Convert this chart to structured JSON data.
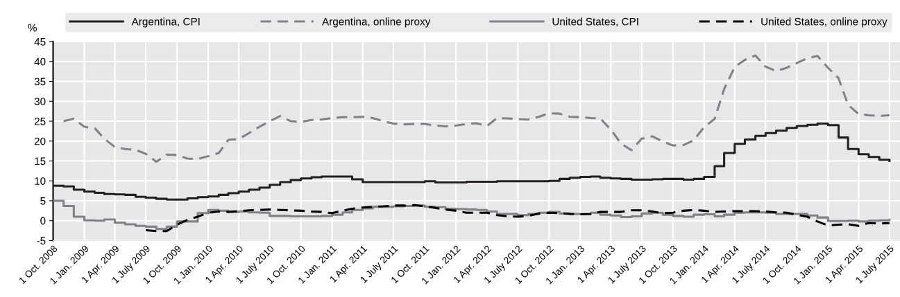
{
  "chart_data": {
    "type": "line",
    "ylabel": "%",
    "legend": "top",
    "grid": true,
    "ylim": [
      -5,
      45
    ],
    "yticks": [
      -5,
      0,
      5,
      10,
      15,
      20,
      25,
      30,
      35,
      40,
      45
    ],
    "xlim": [
      "2008-10-01",
      "2015-08-01"
    ],
    "xticks": [
      {
        "value": "2008-10-01",
        "label": "1 Oct. 2008"
      },
      {
        "value": "2009-01-01",
        "label": "1 Jan. 2009"
      },
      {
        "value": "2009-04-01",
        "label": "1 Apr. 2009"
      },
      {
        "value": "2009-07-01",
        "label": "1 July 2009"
      },
      {
        "value": "2009-10-01",
        "label": "1 Oct. 2009"
      },
      {
        "value": "2010-01-01",
        "label": "1 Jan. 2010"
      },
      {
        "value": "2010-04-01",
        "label": "1 Apr. 2010"
      },
      {
        "value": "2010-07-01",
        "label": "1 July 2010"
      },
      {
        "value": "2010-10-01",
        "label": "1 Oct. 2010"
      },
      {
        "value": "2011-01-01",
        "label": "1 Jan. 2011"
      },
      {
        "value": "2011-04-01",
        "label": "1 Apr. 2011"
      },
      {
        "value": "2011-07-01",
        "label": "1 July 2011"
      },
      {
        "value": "2011-10-01",
        "label": "1 Oct. 2011"
      },
      {
        "value": "2012-01-01",
        "label": "1 Jan. 2012"
      },
      {
        "value": "2012-04-01",
        "label": "1 Apr. 2012"
      },
      {
        "value": "2012-07-01",
        "label": "1 July 2012"
      },
      {
        "value": "2012-10-01",
        "label": "1 Oct. 2012"
      },
      {
        "value": "2013-01-01",
        "label": "1 Jan. 2013"
      },
      {
        "value": "2013-04-01",
        "label": "1 Apr. 2013"
      },
      {
        "value": "2013-07-01",
        "label": "1 July 2013"
      },
      {
        "value": "2013-10-01",
        "label": "1 Oct. 2013"
      },
      {
        "value": "2014-01-01",
        "label": "1 Jan. 2014"
      },
      {
        "value": "2014-04-01",
        "label": "1 Apr. 2014"
      },
      {
        "value": "2014-07-01",
        "label": "1 July 2014"
      },
      {
        "value": "2014-10-01",
        "label": "1 Oct. 2014"
      },
      {
        "value": "2015-01-01",
        "label": "1 Jan. 2015"
      },
      {
        "value": "2015-04-01",
        "label": "1 Apr. 2015"
      },
      {
        "value": "2015-07-01",
        "label": "1 July 2015"
      }
    ],
    "x": [
      "2008-10",
      "2008-11",
      "2008-12",
      "2009-01",
      "2009-02",
      "2009-03",
      "2009-04",
      "2009-05",
      "2009-06",
      "2009-07",
      "2009-08",
      "2009-09",
      "2009-10",
      "2009-11",
      "2009-12",
      "2010-01",
      "2010-02",
      "2010-03",
      "2010-04",
      "2010-05",
      "2010-06",
      "2010-07",
      "2010-08",
      "2010-09",
      "2010-10",
      "2010-11",
      "2010-12",
      "2011-01",
      "2011-02",
      "2011-03",
      "2011-04",
      "2011-05",
      "2011-06",
      "2011-07",
      "2011-08",
      "2011-09",
      "2011-10",
      "2011-11",
      "2011-12",
      "2012-01",
      "2012-02",
      "2012-03",
      "2012-04",
      "2012-05",
      "2012-06",
      "2012-07",
      "2012-08",
      "2012-09",
      "2012-10",
      "2012-11",
      "2012-12",
      "2013-01",
      "2013-02",
      "2013-03",
      "2013-04",
      "2013-05",
      "2013-06",
      "2013-07",
      "2013-08",
      "2013-09",
      "2013-10",
      "2013-11",
      "2013-12",
      "2014-01",
      "2014-02",
      "2014-03",
      "2014-04",
      "2014-05",
      "2014-06",
      "2014-07",
      "2014-08",
      "2014-09",
      "2014-10",
      "2014-11",
      "2014-12",
      "2015-01",
      "2015-02",
      "2015-03",
      "2015-04",
      "2015-05",
      "2015-06",
      "2015-07"
    ],
    "series": [
      {
        "name": "Argentina, CPI",
        "type": "step",
        "line_style": "solid",
        "color": "#231f20",
        "values": [
          8.8,
          8.6,
          7.8,
          7.3,
          7.0,
          6.7,
          6.6,
          6.5,
          6.0,
          5.8,
          5.5,
          5.3,
          5.3,
          5.6,
          5.9,
          6.1,
          6.5,
          6.9,
          7.3,
          7.8,
          8.3,
          9.0,
          9.7,
          10.2,
          10.6,
          10.9,
          11.1,
          11.1,
          11.1,
          10.4,
          9.7,
          9.7,
          9.7,
          9.7,
          9.7,
          9.7,
          9.9,
          9.6,
          9.6,
          9.6,
          9.8,
          9.8,
          9.8,
          9.9,
          9.9,
          9.9,
          9.9,
          9.9,
          10.0,
          10.5,
          10.8,
          11.0,
          11.1,
          10.8,
          10.6,
          10.5,
          10.3,
          10.3,
          10.4,
          10.5,
          10.5,
          10.3,
          10.5,
          11.0,
          13.7,
          17.0,
          19.3,
          20.4,
          21.3,
          22.0,
          22.6,
          23.3,
          23.8,
          24.1,
          24.4,
          24.0,
          20.9,
          18.0,
          16.7,
          16.0,
          15.3,
          15.0
        ]
      },
      {
        "name": "Argentina, online proxy",
        "type": "line",
        "line_style": "dashed",
        "color": "#808285",
        "values": [
          null,
          25.0,
          25.6,
          23.6,
          23.2,
          20.6,
          18.5,
          18.0,
          17.8,
          16.8,
          14.8,
          16.6,
          16.5,
          15.6,
          15.5,
          16.2,
          17.0,
          20.3,
          20.5,
          22.0,
          23.6,
          25.0,
          26.3,
          25.0,
          24.8,
          25.3,
          25.4,
          25.8,
          26.0,
          26.0,
          26.1,
          25.8,
          25.0,
          24.4,
          24.2,
          24.3,
          24.3,
          23.9,
          23.7,
          23.9,
          24.3,
          24.5,
          23.8,
          25.8,
          25.7,
          25.5,
          25.4,
          26.1,
          27.0,
          26.9,
          26.1,
          26.0,
          25.8,
          25.7,
          22.9,
          19.4,
          17.7,
          20.6,
          21.2,
          19.9,
          18.9,
          19.0,
          20.2,
          23.5,
          25.6,
          33.1,
          38.6,
          40.4,
          41.5,
          38.7,
          37.6,
          38.4,
          39.6,
          40.8,
          41.4,
          38.4,
          35.8,
          29.1,
          26.8,
          26.5,
          26.3,
          26.5
        ]
      },
      {
        "name": "United States, CPI",
        "type": "step",
        "line_style": "solid",
        "color": "#808285",
        "values": [
          5.0,
          3.7,
          1.0,
          0.1,
          0.0,
          0.3,
          -0.5,
          -0.9,
          -1.3,
          -1.5,
          -2.1,
          -1.5,
          -0.2,
          -0.2,
          1.9,
          2.7,
          2.5,
          2.2,
          2.3,
          2.1,
          2.0,
          1.2,
          1.2,
          1.1,
          1.1,
          1.1,
          1.2,
          1.5,
          2.1,
          2.7,
          3.1,
          3.5,
          3.5,
          3.6,
          3.7,
          3.8,
          3.5,
          3.4,
          3.0,
          2.9,
          2.8,
          2.7,
          2.3,
          1.7,
          1.7,
          1.4,
          1.7,
          2.0,
          2.2,
          1.8,
          1.7,
          1.6,
          2.0,
          1.5,
          1.3,
          0.9,
          1.1,
          1.8,
          2.0,
          1.5,
          1.2,
          1.0,
          1.5,
          1.6,
          1.1,
          1.5,
          2.0,
          2.1,
          2.1,
          2.0,
          1.7,
          1.7,
          1.7,
          1.3,
          0.8,
          -0.1,
          -0.1,
          0.0,
          -0.2,
          0.0,
          0.1,
          0.2
        ]
      },
      {
        "name": "United States, online proxy",
        "type": "line",
        "line_style": "dashed",
        "color": "#000000",
        "values": [
          null,
          null,
          null,
          null,
          null,
          null,
          null,
          null,
          null,
          -2.4,
          -2.6,
          -2.6,
          -1.0,
          0.2,
          1.0,
          2.0,
          2.3,
          2.2,
          2.4,
          2.6,
          2.7,
          2.8,
          2.7,
          2.6,
          2.5,
          2.3,
          2.2,
          1.9,
          2.5,
          3.0,
          3.3,
          3.5,
          3.6,
          3.8,
          3.8,
          3.9,
          3.6,
          3.2,
          2.8,
          2.5,
          2.0,
          2.0,
          2.0,
          1.4,
          1.1,
          1.0,
          1.2,
          1.8,
          2.0,
          1.9,
          1.7,
          1.6,
          1.7,
          2.2,
          2.2,
          2.2,
          2.6,
          2.6,
          2.3,
          1.9,
          2.0,
          2.5,
          2.7,
          2.5,
          2.2,
          2.3,
          2.4,
          2.4,
          2.4,
          2.3,
          2.1,
          2.0,
          1.5,
          1.0,
          -0.2,
          -1.2,
          -1.0,
          -0.9,
          -1.3,
          -0.6,
          -0.7,
          -0.6
        ]
      }
    ]
  }
}
